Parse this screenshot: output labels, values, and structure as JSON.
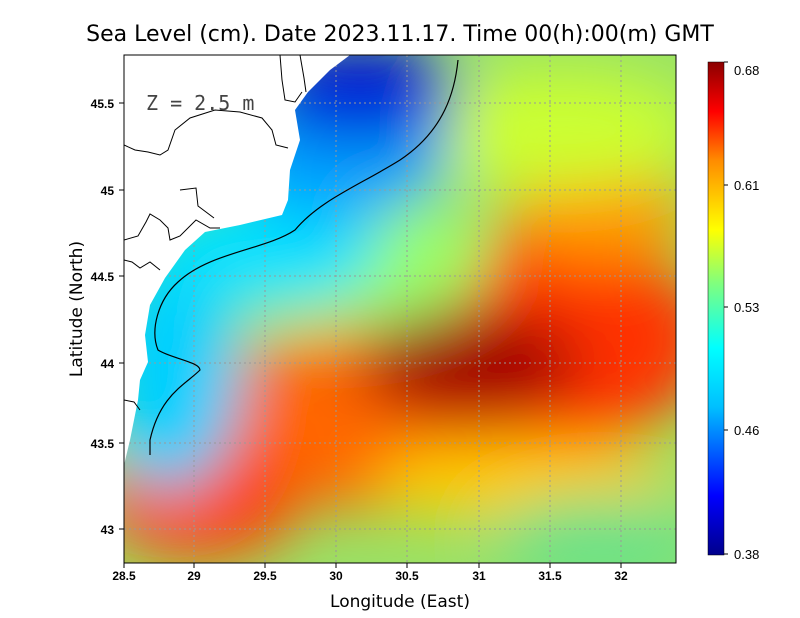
{
  "title": "Sea Level (cm). Date 2023.11.17. Time 00(h):00(m) GMT",
  "depth_label": "Z = 2.5 m",
  "x_axis": {
    "label": "Longitude (East)",
    "ticks": [
      "28.5",
      "29",
      "29.5",
      "30",
      "30.5",
      "31",
      "31.5",
      "32"
    ]
  },
  "y_axis": {
    "label": "Latitude (North)",
    "ticks": [
      "45.5",
      "45",
      "44.5",
      "44",
      "43.5",
      "43"
    ]
  },
  "colorbar": {
    "ticks": [
      "0.68",
      "0.61",
      "0.53",
      "0.46",
      "0.38"
    ]
  },
  "colors": {
    "high": "#8b0000",
    "mid": "#ffff00",
    "low": "#00008b",
    "land": "#ffffff",
    "grid": "#999999"
  },
  "chart_data": {
    "type": "heatmap",
    "variable": "Sea Level",
    "units": "cm",
    "depth": "2.5 m",
    "date": "2023.11.17",
    "time": "00(h):00(m) GMT",
    "xlim": [
      28.5,
      32.4
    ],
    "ylim": [
      42.8,
      45.8
    ],
    "vrange": [
      0.38,
      0.68
    ],
    "features": [
      {
        "name": "maximum",
        "lon": 31.0,
        "lat": 44.0,
        "value": 0.68
      },
      {
        "name": "minimum",
        "lon": 30.3,
        "lat": 45.7,
        "value": 0.38
      }
    ]
  }
}
